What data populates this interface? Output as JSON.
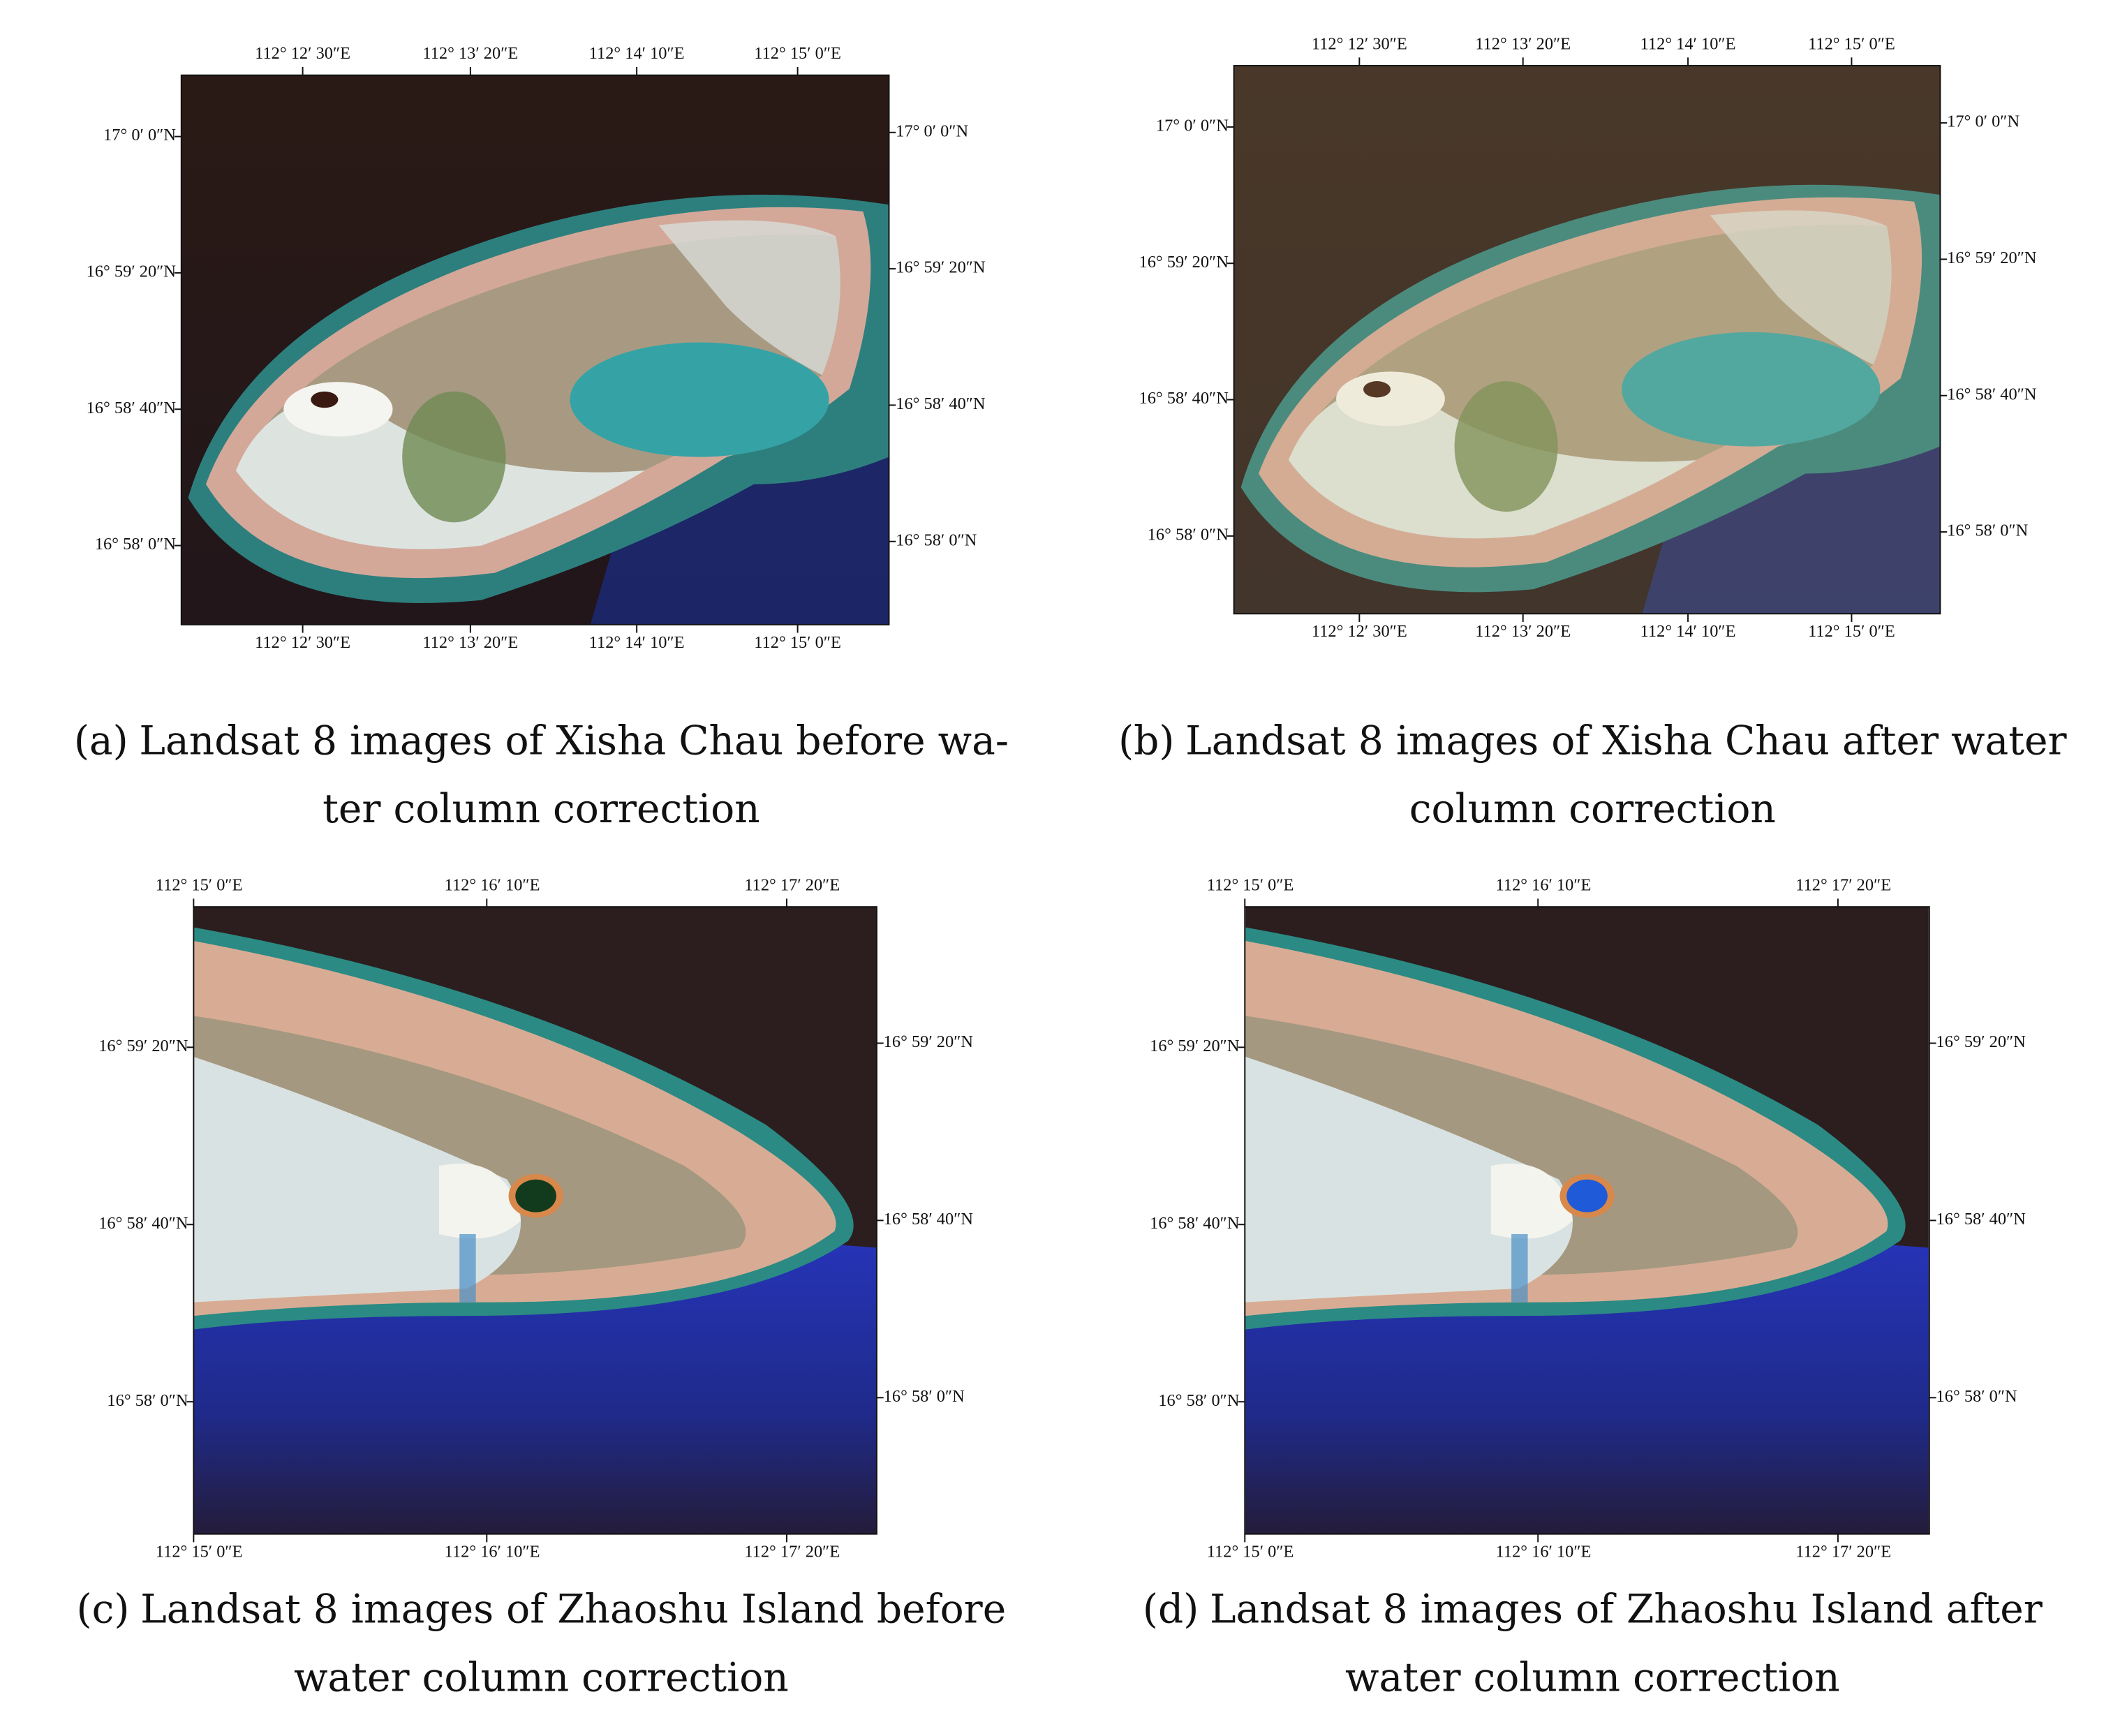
{
  "panels": [
    {
      "label": "(a)",
      "caption_lines": [
        "Landsat 8 images of Xisha Chau before wa-",
        "ter column correction"
      ],
      "top_ticks": [
        "112° 12′ 30″E",
        "112° 13′ 20″E",
        "112° 14′ 10″E",
        "112° 15′ 0″E"
      ],
      "bottom_ticks": [
        "112° 12′ 30″E",
        "112° 13′ 20″E",
        "112° 14′ 10″E",
        "112° 15′ 0″E"
      ],
      "left_ticks": [
        "17° 0′ 0″N",
        "16° 59′ 20″N",
        "16° 58′ 40″N",
        "16° 58′ 0″N"
      ],
      "right_ticks": [
        "17° 0′ 0″N",
        "16° 59′ 20″N",
        "16° 58′ 40″N",
        "16° 58′ 0″N"
      ]
    },
    {
      "label": "(b)",
      "caption_lines": [
        "Landsat 8 images of Xisha Chau after water",
        "column correction"
      ],
      "top_ticks": [
        "112° 12′ 30″E",
        "112° 13′ 20″E",
        "112° 14′ 10″E",
        "112° 15′ 0″E"
      ],
      "bottom_ticks": [
        "112° 12′ 30″E",
        "112° 13′ 20″E",
        "112° 14′ 10″E",
        "112° 15′ 0″E"
      ],
      "left_ticks": [
        "17° 0′ 0″N",
        "16° 59′ 20″N",
        "16° 58′ 40″N",
        "16° 58′ 0″N"
      ],
      "right_ticks": [
        "17° 0′ 0″N",
        "16° 59′ 20″N",
        "16° 58′ 40″N",
        "16° 58′ 0″N"
      ]
    },
    {
      "label": "(c)",
      "caption_lines": [
        "Landsat 8 images of Zhaoshu Island before",
        "water column correction"
      ],
      "top_ticks": [
        "112° 15′ 0″E",
        "112° 16′ 10″E",
        "112° 17′ 20″E"
      ],
      "bottom_ticks": [
        "112° 15′ 0″E",
        "112° 16′ 10″E",
        "112° 17′ 20″E"
      ],
      "left_ticks": [
        "16° 59′ 20″N",
        "16° 58′ 40″N",
        "16° 58′ 0″N"
      ],
      "right_ticks": [
        "16° 59′ 20″N",
        "16° 58′ 40″N",
        "16° 58′ 0″N"
      ]
    },
    {
      "label": "(d)",
      "caption_lines": [
        "Landsat 8 images of Zhaoshu Island after",
        "water column correction"
      ],
      "top_ticks": [
        "112° 15′ 0″E",
        "112° 16′ 10″E",
        "112° 17′ 20″E"
      ],
      "bottom_ticks": [
        "112° 15′ 0″E",
        "112° 16′ 10″E",
        "112° 17′ 20″E"
      ],
      "left_ticks": [
        "16° 59′ 20″N",
        "16° 58′ 40″N",
        "16° 58′ 0″N"
      ],
      "right_ticks": [
        "16° 59′ 20″N",
        "16° 58′ 40″N",
        "16° 58′ 0″N"
      ]
    }
  ]
}
